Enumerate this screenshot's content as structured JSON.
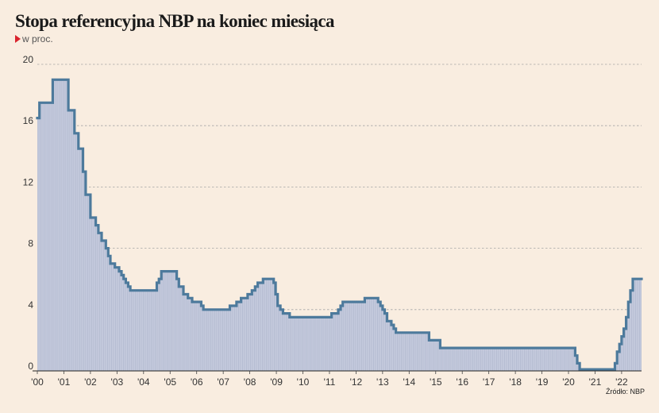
{
  "chart_data": {
    "type": "area",
    "title": "Stopa referencyjna NBP na koniec miesiąca",
    "subtitle": "w proc.",
    "source": "Źródło: NBP",
    "xlabel": "",
    "ylabel": "",
    "ylim": [
      0,
      20
    ],
    "grid": true,
    "y_ticks": [
      "0",
      "4",
      "8",
      "12",
      "16",
      "20"
    ],
    "x_ticks": [
      "'00",
      "'01",
      "'02",
      "'03",
      "'04",
      "'05",
      "'06",
      "'07",
      "'08",
      "'09",
      "'10",
      "'11",
      "'12",
      "'13",
      "'14",
      "'15",
      "'16",
      "'17",
      "'18",
      "'19",
      "'20",
      "'21",
      "'22"
    ],
    "x_start_year": 2000,
    "x_end_year": 2022.75,
    "colors": {
      "line": "#4d7a9c",
      "fill": "#c4cadd",
      "background": "#f9ede0",
      "grid": "#a6a6a6"
    },
    "series": [
      {
        "values": [
          [
            2000.0,
            16.5
          ],
          [
            2000.08,
            17.5
          ],
          [
            2000.58,
            19.0
          ],
          [
            2001.17,
            17.0
          ],
          [
            2001.4,
            15.5
          ],
          [
            2001.55,
            14.5
          ],
          [
            2001.72,
            13.0
          ],
          [
            2001.82,
            11.5
          ],
          [
            2002.0,
            10.0
          ],
          [
            2002.2,
            9.5
          ],
          [
            2002.3,
            9.0
          ],
          [
            2002.42,
            8.5
          ],
          [
            2002.58,
            8.0
          ],
          [
            2002.67,
            7.5
          ],
          [
            2002.75,
            7.0
          ],
          [
            2002.92,
            6.75
          ],
          [
            2003.08,
            6.5
          ],
          [
            2003.17,
            6.25
          ],
          [
            2003.25,
            6.0
          ],
          [
            2003.33,
            5.75
          ],
          [
            2003.42,
            5.5
          ],
          [
            2003.5,
            5.25
          ],
          [
            2004.5,
            5.75
          ],
          [
            2004.58,
            6.0
          ],
          [
            2004.67,
            6.5
          ],
          [
            2005.25,
            6.0
          ],
          [
            2005.33,
            5.5
          ],
          [
            2005.5,
            5.0
          ],
          [
            2005.67,
            4.75
          ],
          [
            2005.83,
            4.5
          ],
          [
            2006.17,
            4.25
          ],
          [
            2006.25,
            4.0
          ],
          [
            2007.25,
            4.25
          ],
          [
            2007.5,
            4.5
          ],
          [
            2007.67,
            4.75
          ],
          [
            2007.92,
            5.0
          ],
          [
            2008.08,
            5.25
          ],
          [
            2008.2,
            5.5
          ],
          [
            2008.3,
            5.75
          ],
          [
            2008.5,
            6.0
          ],
          [
            2008.9,
            5.75
          ],
          [
            2008.97,
            5.0
          ],
          [
            2009.05,
            4.25
          ],
          [
            2009.15,
            4.0
          ],
          [
            2009.25,
            3.75
          ],
          [
            2009.5,
            3.5
          ],
          [
            2011.08,
            3.75
          ],
          [
            2011.33,
            4.0
          ],
          [
            2011.42,
            4.25
          ],
          [
            2011.5,
            4.5
          ],
          [
            2012.33,
            4.75
          ],
          [
            2012.83,
            4.5
          ],
          [
            2012.92,
            4.25
          ],
          [
            2013.0,
            4.0
          ],
          [
            2013.08,
            3.75
          ],
          [
            2013.17,
            3.25
          ],
          [
            2013.33,
            3.0
          ],
          [
            2013.42,
            2.75
          ],
          [
            2013.5,
            2.5
          ],
          [
            2014.75,
            2.0
          ],
          [
            2015.17,
            1.5
          ],
          [
            2020.25,
            1.0
          ],
          [
            2020.33,
            0.5
          ],
          [
            2020.42,
            0.1
          ],
          [
            2021.75,
            0.5
          ],
          [
            2021.83,
            1.25
          ],
          [
            2021.92,
            1.75
          ],
          [
            2022.0,
            2.25
          ],
          [
            2022.08,
            2.75
          ],
          [
            2022.17,
            3.5
          ],
          [
            2022.25,
            4.5
          ],
          [
            2022.33,
            5.25
          ],
          [
            2022.42,
            6.0
          ],
          [
            2022.75,
            6.0
          ]
        ]
      }
    ]
  }
}
